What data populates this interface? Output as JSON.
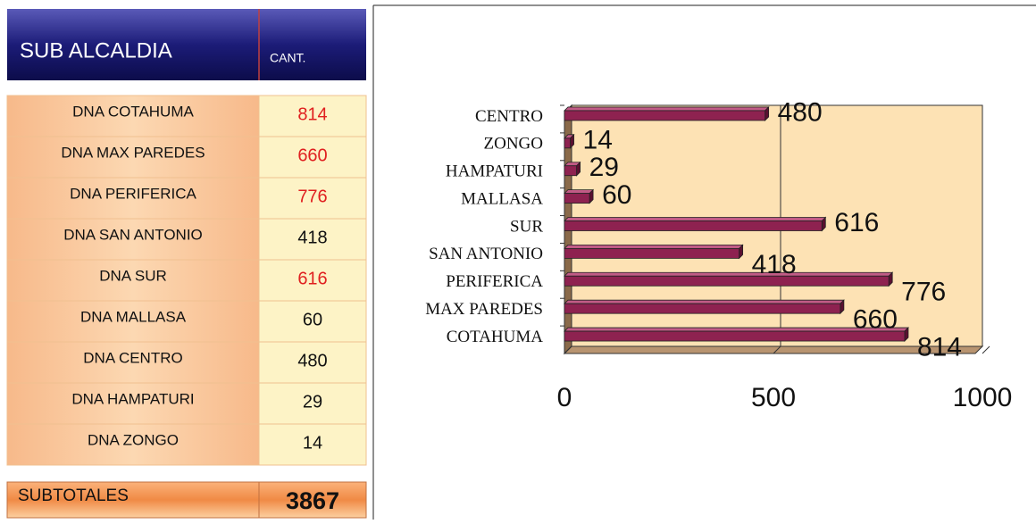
{
  "table": {
    "header": [
      "SUB ALCALDIA",
      "CANT."
    ],
    "rows": [
      {
        "name": "DNA COTAHUMA",
        "value": "814",
        "color": "#e02020"
      },
      {
        "name": "DNA MAX PAREDES",
        "value": "660",
        "color": "#e02020"
      },
      {
        "name": "DNA PERIFERICA",
        "value": "776",
        "color": "#e02020"
      },
      {
        "name": "DNA SAN ANTONIO",
        "value": "418",
        "color": "#111111"
      },
      {
        "name": "DNA SUR",
        "value": "616",
        "color": "#e02020"
      },
      {
        "name": "DNA MALLASA",
        "value": "60",
        "color": "#111111"
      },
      {
        "name": "DNA CENTRO",
        "value": "480",
        "color": "#111111"
      },
      {
        "name": "DNA HAMPATURI",
        "value": "29",
        "color": "#111111"
      },
      {
        "name": "DNA ZONGO",
        "value": "14",
        "color": "#111111"
      }
    ],
    "total": [
      "SUBTOTALES",
      "3867"
    ]
  },
  "chart_data": {
    "type": "bar3d-horizontal",
    "categories": [
      "COTAHUMA",
      "MAX PAREDES",
      "PERIFERICA",
      "SAN ANTONIO",
      "SUR",
      "MALLASA",
      "HAMPATURI",
      "ZONGO",
      "CENTRO"
    ],
    "values": [
      814,
      660,
      776,
      418,
      616,
      60,
      29,
      14,
      480
    ],
    "color": "#8e2250",
    "xlim": [
      0,
      1000
    ],
    "xticks": [
      0,
      500,
      1000
    ],
    "grid": true
  }
}
